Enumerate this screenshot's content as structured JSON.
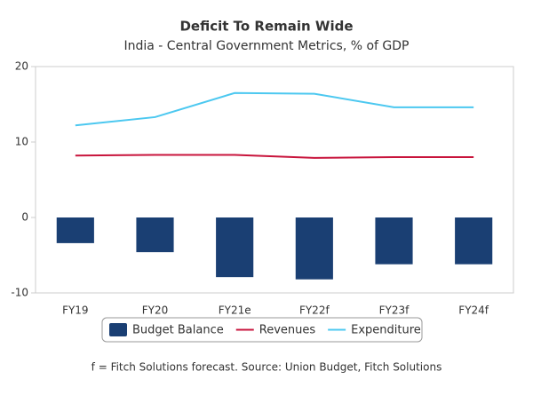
{
  "chart_data": {
    "type": "combo",
    "title": "Deficit To Remain Wide",
    "subtitle": "India - Central Government Metrics, % of GDP",
    "note": "f = Fitch Solutions forecast. Source: Union Budget, Fitch Solutions",
    "categories": [
      "FY19",
      "FY20",
      "FY21e",
      "FY22f",
      "FY23f",
      "FY24f"
    ],
    "series": [
      {
        "name": "Budget Balance",
        "type": "bar",
        "color": "#1a3f73",
        "values": [
          -3.4,
          -4.6,
          -7.9,
          -8.2,
          -6.2,
          -6.2
        ]
      },
      {
        "name": "Revenues",
        "type": "line",
        "color": "#c8143c",
        "values": [
          8.2,
          8.3,
          8.3,
          7.9,
          8.0,
          8.0
        ]
      },
      {
        "name": "Expenditure",
        "type": "line",
        "color": "#4cc8f0",
        "values": [
          12.2,
          13.3,
          16.5,
          16.4,
          14.6,
          14.6
        ]
      }
    ],
    "ylim": [
      -10,
      20
    ],
    "yticks": [
      -10,
      0,
      10,
      20
    ],
    "grid": false,
    "legend": "bottom"
  }
}
